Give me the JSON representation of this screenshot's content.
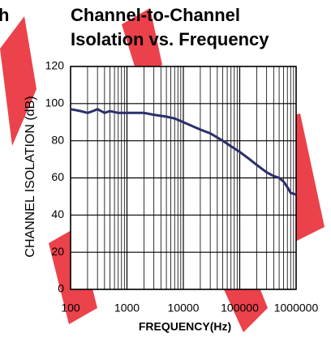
{
  "fragment_text": "h",
  "chart_data": {
    "type": "line",
    "title_lines": [
      "Channel-to-Channel",
      "Isolation vs. Frequency"
    ],
    "x_label": "FREQUENCY(Hz)",
    "y_label": "CHANNEL ISOLATION (dB)",
    "x_scale": "log",
    "xlim": [
      100,
      1000000
    ],
    "xticks": [
      100,
      1000,
      10000,
      100000,
      1000000
    ],
    "x_minor_ticks": [
      200,
      300,
      400,
      500,
      600,
      700,
      800,
      900,
      2000,
      3000,
      4000,
      5000,
      6000,
      7000,
      8000,
      9000,
      20000,
      30000,
      40000,
      50000,
      60000,
      70000,
      80000,
      90000,
      200000,
      300000,
      400000,
      500000,
      600000,
      700000,
      800000,
      900000
    ],
    "ylim": [
      0,
      120
    ],
    "yticks": [
      0,
      20,
      40,
      60,
      80,
      100,
      120
    ],
    "grid": true,
    "series": [
      {
        "color": "#2b2f6b",
        "x": [
          100,
          150,
          200,
          250,
          300,
          400,
          500,
          700,
          1000,
          1500,
          2000,
          3000,
          5000,
          7000,
          10000,
          20000,
          30000,
          50000,
          70000,
          100000,
          150000,
          200000,
          300000,
          400000,
          500000,
          600000,
          700000,
          800000,
          1000000
        ],
        "values": [
          97,
          96,
          95,
          96,
          97,
          95,
          96,
          95,
          95,
          95,
          95,
          94,
          93,
          92,
          90,
          86,
          84,
          80,
          77,
          74,
          70,
          67,
          63,
          61,
          60,
          58,
          55,
          52,
          51
        ]
      }
    ]
  }
}
